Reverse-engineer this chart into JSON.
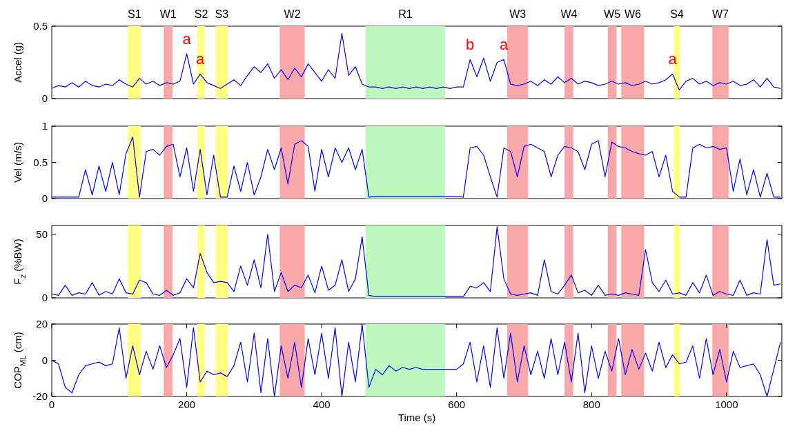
{
  "chart_data": [
    {
      "type": "line",
      "ylabel": "Accel (g)",
      "xlim": [
        0,
        1082
      ],
      "ylim": [
        0,
        0.5
      ],
      "yticks": [
        0,
        0.5
      ],
      "tick_labels": "y",
      "x": [
        0,
        10,
        20,
        30,
        40,
        50,
        60,
        70,
        80,
        90,
        100,
        110,
        120,
        130,
        140,
        150,
        160,
        170,
        180,
        190,
        200,
        210,
        220,
        230,
        240,
        250,
        260,
        270,
        280,
        290,
        300,
        310,
        320,
        330,
        340,
        350,
        360,
        370,
        380,
        390,
        400,
        410,
        420,
        430,
        440,
        450,
        460,
        470,
        480,
        490,
        500,
        510,
        520,
        530,
        540,
        550,
        560,
        570,
        580,
        590,
        600,
        610,
        620,
        630,
        640,
        650,
        660,
        670,
        680,
        690,
        700,
        710,
        720,
        730,
        740,
        750,
        760,
        770,
        780,
        790,
        800,
        810,
        820,
        830,
        840,
        850,
        860,
        870,
        880,
        890,
        900,
        910,
        920,
        930,
        940,
        950,
        960,
        970,
        980,
        990,
        1000,
        1010,
        1020,
        1030,
        1040,
        1050,
        1060,
        1070,
        1080
      ],
      "series": [
        {
          "color": "#0000ff",
          "values": [
            0.07,
            0.09,
            0.08,
            0.11,
            0.08,
            0.12,
            0.09,
            0.08,
            0.1,
            0.09,
            0.13,
            0.1,
            0.08,
            0.14,
            0.1,
            0.12,
            0.09,
            0.11,
            0.1,
            0.12,
            0.31,
            0.1,
            0.17,
            0.11,
            0.09,
            0.07,
            0.1,
            0.13,
            0.09,
            0.16,
            0.22,
            0.18,
            0.24,
            0.14,
            0.2,
            0.13,
            0.21,
            0.15,
            0.24,
            0.18,
            0.12,
            0.2,
            0.14,
            0.45,
            0.16,
            0.22,
            0.1,
            0.08,
            0.08,
            0.07,
            0.08,
            0.07,
            0.08,
            0.07,
            0.08,
            0.07,
            0.08,
            0.07,
            0.08,
            0.07,
            0.08,
            0.08,
            0.27,
            0.15,
            0.28,
            0.12,
            0.25,
            0.27,
            0.1,
            0.09,
            0.1,
            0.12,
            0.09,
            0.13,
            0.1,
            0.15,
            0.11,
            0.14,
            0.1,
            0.12,
            0.11,
            0.09,
            0.1,
            0.12,
            0.1,
            0.11,
            0.09,
            0.1,
            0.12,
            0.1,
            0.11,
            0.13,
            0.17,
            0.06,
            0.12,
            0.14,
            0.1,
            0.12,
            0.09,
            0.11,
            0.1,
            0.12,
            0.09,
            0.1,
            0.13,
            0.08,
            0.14,
            0.08,
            0.07
          ]
        }
      ],
      "bands": [
        {
          "axis": "x",
          "from": 113,
          "to": 132,
          "label": "S1",
          "color": "#ffff80"
        },
        {
          "axis": "x",
          "from": 166,
          "to": 179,
          "label": "W1",
          "color": "#f8a8a8"
        },
        {
          "axis": "x",
          "from": 216,
          "to": 227,
          "label": "S2",
          "color": "#ffff80"
        },
        {
          "axis": "x",
          "from": 243,
          "to": 261,
          "label": "S3",
          "color": "#ffff80"
        },
        {
          "axis": "x",
          "from": 338,
          "to": 375,
          "label": "W2",
          "color": "#f8a8a8"
        },
        {
          "axis": "x",
          "from": 465,
          "to": 583,
          "label": "R1",
          "color": "#bff8bf"
        },
        {
          "axis": "x",
          "from": 675,
          "to": 706,
          "label": "W3",
          "color": "#f8a8a8"
        },
        {
          "axis": "x",
          "from": 760,
          "to": 773,
          "label": "W4",
          "color": "#f8a8a8"
        },
        {
          "axis": "x",
          "from": 824,
          "to": 837,
          "label": "W5",
          "color": "#f8a8a8"
        },
        {
          "axis": "x",
          "from": 844,
          "to": 878,
          "label": "W6",
          "color": "#f8a8a8"
        },
        {
          "axis": "x",
          "from": 922,
          "to": 931,
          "label": "S4",
          "color": "#ffff80"
        },
        {
          "axis": "x",
          "from": 979,
          "to": 1003,
          "label": "W7",
          "color": "#f8a8a8"
        }
      ],
      "annotations": [
        {
          "text": "a",
          "x": 200,
          "y": 0.31
        },
        {
          "text": "a",
          "x": 220,
          "y": 0.17
        },
        {
          "text": "b",
          "x": 620,
          "y": 0.27
        },
        {
          "text": "a",
          "x": 670,
          "y": 0.27
        },
        {
          "text": "a",
          "x": 920,
          "y": 0.17
        }
      ]
    },
    {
      "type": "line",
      "ylabel": "Vel (m/s)",
      "xlim": [
        0,
        1082
      ],
      "ylim": [
        0,
        1
      ],
      "yticks": [
        0,
        0.5,
        1
      ],
      "tick_labels": "y",
      "x": [
        0,
        10,
        20,
        30,
        40,
        50,
        60,
        70,
        80,
        90,
        100,
        110,
        120,
        130,
        140,
        150,
        160,
        170,
        180,
        190,
        200,
        210,
        220,
        230,
        240,
        250,
        260,
        270,
        280,
        290,
        300,
        310,
        320,
        330,
        340,
        350,
        360,
        370,
        380,
        390,
        400,
        410,
        420,
        430,
        440,
        450,
        460,
        470,
        480,
        490,
        500,
        510,
        520,
        530,
        540,
        550,
        560,
        570,
        580,
        590,
        600,
        610,
        620,
        630,
        640,
        650,
        660,
        670,
        680,
        690,
        700,
        710,
        720,
        730,
        740,
        750,
        760,
        770,
        780,
        790,
        800,
        810,
        820,
        830,
        840,
        850,
        860,
        870,
        880,
        890,
        900,
        910,
        920,
        930,
        940,
        950,
        960,
        970,
        980,
        990,
        1000,
        1010,
        1020,
        1030,
        1040,
        1050,
        1060,
        1070,
        1080
      ],
      "series": [
        {
          "color": "#0000ff",
          "values": [
            0.02,
            0.02,
            0.02,
            0.02,
            0.02,
            0.4,
            0.05,
            0.45,
            0.1,
            0.5,
            0.05,
            0.62,
            0.85,
            0.02,
            0.65,
            0.68,
            0.6,
            0.72,
            0.75,
            0.3,
            0.7,
            0.1,
            0.68,
            0.05,
            0.6,
            0.02,
            0.02,
            0.45,
            0.1,
            0.5,
            0.05,
            0.3,
            0.68,
            0.4,
            0.7,
            0.2,
            0.75,
            0.8,
            0.72,
            0.1,
            0.68,
            0.3,
            0.7,
            0.5,
            0.7,
            0.4,
            0.68,
            0.02,
            0.03,
            0.03,
            0.03,
            0.03,
            0.03,
            0.03,
            0.03,
            0.03,
            0.03,
            0.03,
            0.03,
            0.03,
            0.03,
            0.02,
            0.7,
            0.72,
            0.6,
            0.3,
            0.02,
            0.7,
            0.65,
            0.3,
            0.72,
            0.75,
            0.7,
            0.65,
            0.3,
            0.6,
            0.72,
            0.7,
            0.65,
            0.4,
            0.75,
            0.8,
            0.3,
            0.78,
            0.72,
            0.7,
            0.65,
            0.62,
            0.6,
            0.65,
            0.3,
            0.6,
            0.1,
            0.02,
            0.02,
            0.7,
            0.75,
            0.7,
            0.72,
            0.68,
            0.7,
            0.1,
            0.55,
            0.05,
            0.4,
            0.02,
            0.35,
            0.02,
            0.02
          ]
        }
      ],
      "bands": [
        {
          "axis": "x",
          "from": 113,
          "to": 132,
          "color": "#ffff80"
        },
        {
          "axis": "x",
          "from": 166,
          "to": 179,
          "color": "#f8a8a8"
        },
        {
          "axis": "x",
          "from": 216,
          "to": 227,
          "color": "#ffff80"
        },
        {
          "axis": "x",
          "from": 243,
          "to": 261,
          "color": "#ffff80"
        },
        {
          "axis": "x",
          "from": 338,
          "to": 375,
          "color": "#f8a8a8"
        },
        {
          "axis": "x",
          "from": 465,
          "to": 583,
          "color": "#bff8bf"
        },
        {
          "axis": "x",
          "from": 675,
          "to": 706,
          "color": "#f8a8a8"
        },
        {
          "axis": "x",
          "from": 760,
          "to": 773,
          "color": "#f8a8a8"
        },
        {
          "axis": "x",
          "from": 824,
          "to": 837,
          "color": "#f8a8a8"
        },
        {
          "axis": "x",
          "from": 844,
          "to": 878,
          "color": "#f8a8a8"
        },
        {
          "axis": "x",
          "from": 922,
          "to": 931,
          "color": "#ffff80"
        },
        {
          "axis": "x",
          "from": 979,
          "to": 1003,
          "color": "#f8a8a8"
        }
      ]
    },
    {
      "type": "line",
      "ylabel": "F$_{z}$ (%BW)",
      "xlim": [
        0,
        1082
      ],
      "ylim": [
        0,
        57
      ],
      "yticks": [
        0,
        50
      ],
      "tick_labels": "y",
      "x": [
        0,
        10,
        20,
        30,
        40,
        50,
        60,
        70,
        80,
        90,
        100,
        110,
        120,
        130,
        140,
        150,
        160,
        170,
        180,
        190,
        200,
        210,
        220,
        230,
        240,
        250,
        260,
        270,
        280,
        290,
        300,
        310,
        320,
        330,
        340,
        350,
        360,
        370,
        380,
        390,
        400,
        410,
        420,
        430,
        440,
        450,
        460,
        470,
        480,
        490,
        500,
        510,
        520,
        530,
        540,
        550,
        560,
        570,
        580,
        590,
        600,
        610,
        620,
        630,
        640,
        650,
        660,
        670,
        680,
        690,
        700,
        710,
        720,
        730,
        740,
        750,
        760,
        770,
        780,
        790,
        800,
        810,
        820,
        830,
        840,
        850,
        860,
        870,
        880,
        890,
        900,
        910,
        920,
        930,
        940,
        950,
        960,
        970,
        980,
        990,
        1000,
        1010,
        1020,
        1030,
        1040,
        1050,
        1060,
        1070,
        1080
      ],
      "series": [
        {
          "color": "#0000ff",
          "values": [
            3,
            2,
            10,
            2,
            4,
            3,
            12,
            2,
            5,
            3,
            15,
            4,
            3,
            14,
            12,
            3,
            2,
            6,
            2,
            4,
            15,
            8,
            35,
            20,
            12,
            13,
            12,
            5,
            25,
            10,
            30,
            8,
            50,
            5,
            20,
            5,
            10,
            8,
            18,
            4,
            25,
            6,
            10,
            30,
            5,
            15,
            48,
            2,
            1,
            1,
            1,
            1,
            1,
            1,
            1,
            1,
            1,
            1,
            1,
            1,
            1,
            1,
            9,
            8,
            12,
            5,
            56,
            15,
            3,
            2,
            3,
            4,
            2,
            30,
            5,
            3,
            10,
            18,
            4,
            6,
            2,
            10,
            2,
            3,
            2,
            4,
            3,
            2,
            38,
            12,
            5,
            14,
            3,
            4,
            2,
            12,
            4,
            18,
            2,
            5,
            3,
            2,
            14,
            2,
            4,
            3,
            46,
            10,
            11
          ]
        }
      ],
      "bands": [
        {
          "axis": "x",
          "from": 113,
          "to": 132,
          "color": "#ffff80"
        },
        {
          "axis": "x",
          "from": 166,
          "to": 179,
          "color": "#f8a8a8"
        },
        {
          "axis": "x",
          "from": 216,
          "to": 227,
          "color": "#ffff80"
        },
        {
          "axis": "x",
          "from": 243,
          "to": 261,
          "color": "#ffff80"
        },
        {
          "axis": "x",
          "from": 338,
          "to": 375,
          "color": "#f8a8a8"
        },
        {
          "axis": "x",
          "from": 465,
          "to": 583,
          "color": "#bff8bf"
        },
        {
          "axis": "x",
          "from": 675,
          "to": 706,
          "color": "#f8a8a8"
        },
        {
          "axis": "x",
          "from": 760,
          "to": 773,
          "color": "#f8a8a8"
        },
        {
          "axis": "x",
          "from": 824,
          "to": 837,
          "color": "#f8a8a8"
        },
        {
          "axis": "x",
          "from": 844,
          "to": 878,
          "color": "#f8a8a8"
        },
        {
          "axis": "x",
          "from": 922,
          "to": 931,
          "color": "#ffff80"
        },
        {
          "axis": "x",
          "from": 979,
          "to": 1003,
          "color": "#f8a8a8"
        }
      ]
    },
    {
      "type": "line",
      "ylabel": "COP$_{ML}$ (cm)",
      "xlabel": "Time (s)",
      "xlim": [
        0,
        1082
      ],
      "xticks": [
        0,
        200,
        400,
        600,
        800,
        1000
      ],
      "ylim": [
        -20,
        20
      ],
      "yticks": [
        -20,
        0,
        20
      ],
      "x": [
        0,
        10,
        20,
        30,
        40,
        50,
        60,
        70,
        80,
        90,
        100,
        110,
        120,
        130,
        140,
        150,
        160,
        170,
        180,
        190,
        200,
        210,
        220,
        230,
        240,
        250,
        260,
        270,
        280,
        290,
        300,
        310,
        320,
        330,
        340,
        350,
        360,
        370,
        380,
        390,
        400,
        410,
        420,
        430,
        440,
        450,
        460,
        470,
        480,
        490,
        500,
        510,
        520,
        530,
        540,
        550,
        560,
        570,
        580,
        590,
        600,
        610,
        620,
        630,
        640,
        650,
        660,
        670,
        680,
        690,
        700,
        710,
        720,
        730,
        740,
        750,
        760,
        770,
        780,
        790,
        800,
        810,
        820,
        830,
        840,
        850,
        860,
        870,
        880,
        890,
        900,
        910,
        920,
        930,
        940,
        950,
        960,
        970,
        980,
        990,
        1000,
        1010,
        1020,
        1030,
        1040,
        1050,
        1060,
        1070,
        1080
      ],
      "series": [
        {
          "color": "#0000ff",
          "values": [
            0,
            -2,
            -15,
            -18,
            -8,
            -3,
            -2,
            -1,
            -3,
            -2,
            18,
            -10,
            8,
            -8,
            5,
            -5,
            8,
            -4,
            3,
            12,
            -15,
            18,
            -12,
            -6,
            -8,
            -7,
            -9,
            -3,
            10,
            -12,
            15,
            -18,
            12,
            -20,
            8,
            -10,
            10,
            -15,
            12,
            -8,
            15,
            -10,
            18,
            -20,
            10,
            -12,
            20,
            -15,
            -5,
            -8,
            -3,
            -6,
            -4,
            -5,
            -4,
            -5,
            -5,
            -5,
            -5,
            -5,
            -5,
            -2,
            10,
            -12,
            8,
            -15,
            18,
            -10,
            15,
            -12,
            8,
            -8,
            5,
            -10,
            12,
            -8,
            10,
            -12,
            15,
            -18,
            8,
            -10,
            5,
            -6,
            12,
            -8,
            6,
            -5,
            4,
            -6,
            10,
            -4,
            3,
            -2,
            -1,
            8,
            -10,
            12,
            -8,
            6,
            -12,
            5,
            -4,
            -3,
            -2,
            -8,
            -20,
            -5,
            10
          ]
        }
      ],
      "bands": [
        {
          "axis": "x",
          "from": 113,
          "to": 132,
          "color": "#ffff80"
        },
        {
          "axis": "x",
          "from": 166,
          "to": 179,
          "color": "#f8a8a8"
        },
        {
          "axis": "x",
          "from": 216,
          "to": 227,
          "color": "#ffff80"
        },
        {
          "axis": "x",
          "from": 243,
          "to": 261,
          "color": "#ffff80"
        },
        {
          "axis": "x",
          "from": 338,
          "to": 375,
          "color": "#f8a8a8"
        },
        {
          "axis": "x",
          "from": 465,
          "to": 583,
          "color": "#bff8bf"
        },
        {
          "axis": "x",
          "from": 675,
          "to": 706,
          "color": "#f8a8a8"
        },
        {
          "axis": "x",
          "from": 760,
          "to": 773,
          "color": "#f8a8a8"
        },
        {
          "axis": "x",
          "from": 824,
          "to": 837,
          "color": "#f8a8a8"
        },
        {
          "axis": "x",
          "from": 844,
          "to": 878,
          "color": "#f8a8a8"
        },
        {
          "axis": "x",
          "from": 922,
          "to": 931,
          "color": "#ffff80"
        },
        {
          "axis": "x",
          "from": 979,
          "to": 1003,
          "color": "#f8a8a8"
        }
      ]
    }
  ]
}
